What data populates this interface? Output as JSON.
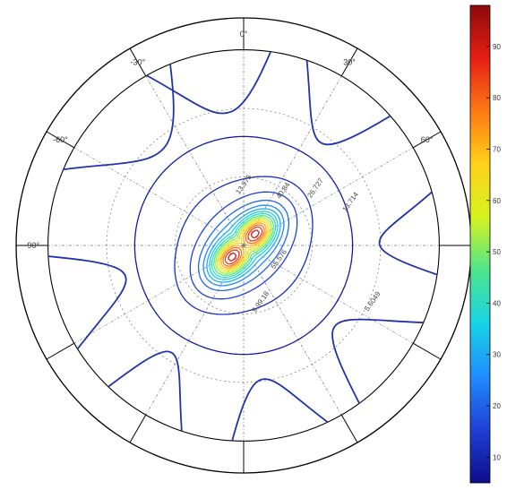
{
  "chart_data": {
    "type": "polar-contour",
    "angle_ticks": [
      {
        "angle": 0,
        "label": "0°"
      },
      {
        "angle": 30,
        "label": "30°"
      },
      {
        "angle": 60,
        "label": "60°"
      },
      {
        "angle": -30,
        "label": "-30°"
      },
      {
        "angle": -60,
        "label": "-60°"
      },
      {
        "angle": -90,
        "label": "-90°"
      }
    ],
    "radial_grid_levels": [
      0.35,
      0.7
    ],
    "outer_ring_ratio": 0.86,
    "contour_field": {
      "peak_value": 98,
      "min_value": 5,
      "lobe_axis_deg": 45,
      "num_levels": 16
    },
    "contour_labels": [
      {
        "text": "13.975",
        "a": -5,
        "r": 0.26
      },
      {
        "text": "40.84",
        "a": 38,
        "r": 0.3
      },
      {
        "text": "26.727",
        "a": 55,
        "r": 0.42
      },
      {
        "text": "13.714",
        "a": 72,
        "r": 0.55
      },
      {
        "text": "5.6049",
        "a": 118,
        "r": 0.72
      },
      {
        "text": "9.99.18",
        "a": 170,
        "r": 0.35
      },
      {
        "text": "55.576",
        "a": 128,
        "r": 0.2
      }
    ],
    "colorbar": {
      "min": 5,
      "max": 98,
      "ticks": [
        10,
        20,
        30,
        40,
        50,
        60,
        70,
        80,
        90
      ],
      "colors": [
        "#0d0d8c",
        "#1f3fd6",
        "#1f8cff",
        "#17d3e6",
        "#4ce58c",
        "#d6f21f",
        "#ffd21a",
        "#ff7a14",
        "#e61e14",
        "#8c0a0a"
      ]
    }
  }
}
